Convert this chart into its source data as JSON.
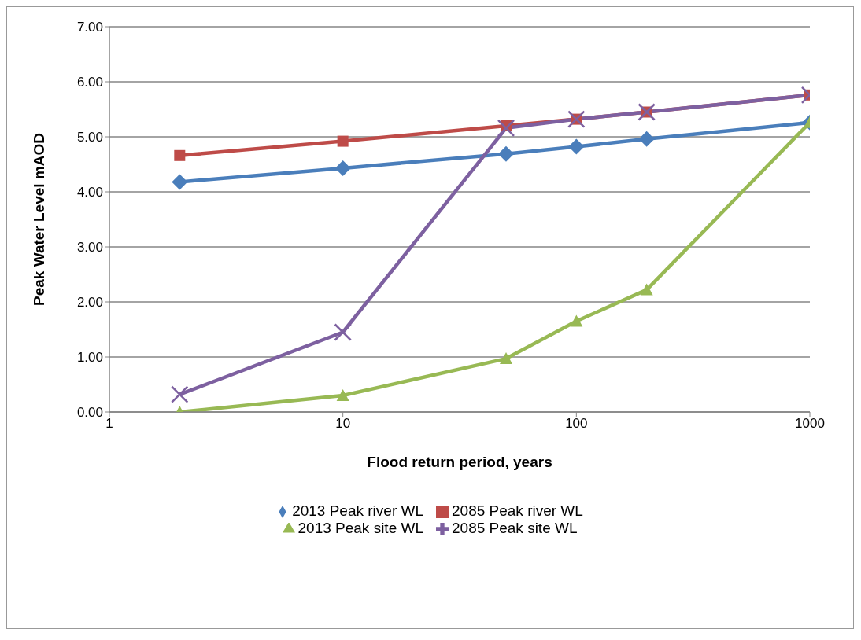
{
  "chart_data": {
    "type": "line",
    "xlabel": "Flood return period, years",
    "ylabel": "Peak Water Level mAOD",
    "x": [
      2,
      10,
      50,
      100,
      200,
      1000
    ],
    "log": "x",
    "xlim": [
      1,
      1000
    ],
    "xticks": [
      1,
      10,
      100,
      1000
    ],
    "ylim": [
      0,
      7
    ],
    "yticks": [
      {
        "value": 0,
        "label": "0.00"
      },
      {
        "value": 1,
        "label": "1.00"
      },
      {
        "value": 2,
        "label": "2.00"
      },
      {
        "value": 3,
        "label": "3.00"
      },
      {
        "value": 4,
        "label": "4.00"
      },
      {
        "value": 5,
        "label": "5.00"
      },
      {
        "value": 6,
        "label": "6.00"
      },
      {
        "value": 7,
        "label": "7.00"
      }
    ],
    "grid": "y",
    "legend": "bottom",
    "line_style": "solid",
    "series": [
      {
        "name": "2013 Peak river WL",
        "color": "#4a7ebb",
        "marker": "diamond",
        "values": [
          4.18,
          4.43,
          4.69,
          4.82,
          4.96,
          5.26
        ]
      },
      {
        "name": "2085 Peak river WL",
        "color": "#be4b48",
        "marker": "square",
        "values": [
          4.66,
          4.92,
          5.2,
          5.32,
          5.45,
          5.76
        ]
      },
      {
        "name": "2013 Peak site WL",
        "color": "#98b954",
        "marker": "triangle",
        "values": [
          0,
          0.3,
          0.97,
          1.65,
          2.22,
          5.26
        ]
      },
      {
        "name": "2085 Peak site WL",
        "color": "#7d60a0",
        "marker": "cross",
        "values": [
          0.32,
          1.45,
          5.16,
          5.32,
          5.45,
          5.76
        ]
      }
    ]
  }
}
